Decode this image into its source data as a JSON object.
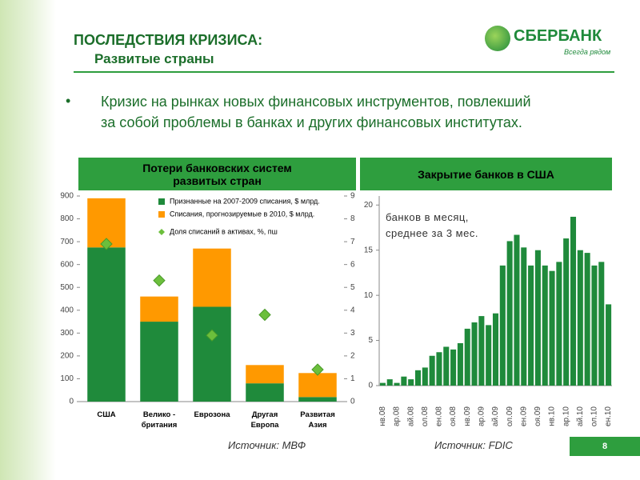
{
  "header": {
    "title": "ПОСЛЕДСТВИЯ КРИЗИСА:",
    "subtitle": "Развитые страны"
  },
  "logo": {
    "name": "СБЕРБАНК",
    "slogan": "Всегда рядом"
  },
  "bullet": "Кризис на рынках новых финансовых инструментов, повлекший за собой проблемы в банках и других финансовых институтах.",
  "chart_data": [
    {
      "type": "bar",
      "stacked": true,
      "title": "Потери банковских систем развитых стран",
      "categories": [
        "США",
        "Велико - британия",
        "Еврозона",
        "Другая Европа",
        "Развитая Азия"
      ],
      "series": [
        {
          "name": "Признанные на 2007-2009 списания, $ млрд.",
          "color": "#1f8a3b",
          "values": [
            675,
            350,
            415,
            80,
            20
          ]
        },
        {
          "name": "Списания, прогнозируемые в 2010, $ млрд.",
          "color": "#ff9900",
          "values": [
            215,
            110,
            255,
            80,
            105
          ]
        },
        {
          "name": "Доля списаний в активах, %, пш",
          "type": "scatter",
          "axis": "y2",
          "color": "#6cbf3c",
          "values": [
            6.9,
            5.3,
            2.9,
            3.8,
            1.4
          ]
        }
      ],
      "ylim": [
        0,
        900
      ],
      "yticks": [
        0,
        100,
        200,
        300,
        400,
        500,
        600,
        700,
        800,
        900
      ],
      "y2lim": [
        0,
        9
      ],
      "y2ticks": [
        0,
        1,
        2,
        3,
        4,
        5,
        6,
        7,
        8,
        9
      ],
      "legend": "top"
    },
    {
      "type": "bar",
      "title": "Закрытие банков в США",
      "annotation": "банков в месяц, среднее за 3 мес.",
      "categories": [
        "нв.08",
        null,
        "ар.08",
        null,
        "ай.08",
        null,
        "ол.08",
        null,
        "ен.08",
        null,
        "оя.08",
        null,
        "нв.09",
        null,
        "ар.09",
        null,
        "ай.09",
        null,
        "ол.09",
        null,
        "ен.09",
        null,
        "оя.09",
        null,
        "нв.10",
        null,
        "ар.10",
        null,
        "ай.10",
        null,
        "ол.10",
        null,
        "ен.10"
      ],
      "values": [
        0.3,
        0.7,
        0.3,
        1.0,
        0.7,
        1.7,
        2.0,
        3.3,
        3.7,
        4.3,
        4.0,
        4.7,
        6.3,
        7.0,
        7.7,
        6.7,
        8.0,
        13.3,
        16.0,
        16.7,
        15.3,
        13.3,
        15.0,
        13.3,
        12.7,
        13.7,
        16.3,
        18.7,
        15.0,
        14.7,
        13.3,
        13.7,
        9.0
      ],
      "color": "#1f8a3b",
      "ylim": [
        0,
        21
      ],
      "yticks": [
        0,
        5,
        10,
        15,
        20
      ]
    }
  ],
  "sources": [
    "Источник: МВФ",
    "Источник: FDIC"
  ],
  "page_number": "8"
}
